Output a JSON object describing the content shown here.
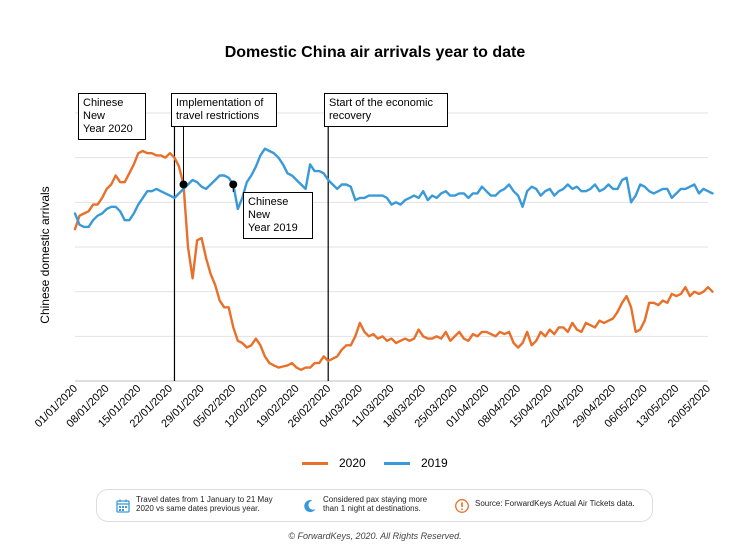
{
  "chart_data": {
    "type": "line",
    "title": "Domestic China air arrivals year to date",
    "ylabel": "Chinese domestic arrivals",
    "xlabel": "",
    "x_ticks": [
      "01/01/2020",
      "08/01/2020",
      "15/01/2020",
      "22/01/2020",
      "29/01/2020",
      "05/02/2020",
      "12/02/2020",
      "19/02/2020",
      "26/02/2020",
      "04/03/2020",
      "11/03/2020",
      "18/03/2020",
      "25/03/2020",
      "01/04/2020",
      "08/04/2020",
      "15/04/2020",
      "22/04/2020",
      "29/04/2020",
      "06/05/2020",
      "13/05/2020",
      "20/05/2020"
    ],
    "grid": true,
    "legend_position": "bottom-center",
    "x_start": "01/01/2020",
    "x_end": "20/05/2020",
    "series": [
      {
        "name": "2020",
        "color": "#E8702A",
        "values": [
          [
            0,
            6.8
          ],
          [
            1,
            7.4
          ],
          [
            2,
            7.5
          ],
          [
            3,
            7.6
          ],
          [
            4,
            7.9
          ],
          [
            5,
            7.9
          ],
          [
            6,
            8.2
          ],
          [
            7,
            8.6
          ],
          [
            8,
            8.8
          ],
          [
            9,
            9.2
          ],
          [
            10,
            8.9
          ],
          [
            11,
            8.9
          ],
          [
            12,
            9.3
          ],
          [
            13,
            9.7
          ],
          [
            14,
            10.2
          ],
          [
            15,
            10.3
          ],
          [
            16,
            10.2
          ],
          [
            17,
            10.2
          ],
          [
            18,
            10.1
          ],
          [
            19,
            10.1
          ],
          [
            20,
            10.0
          ],
          [
            21,
            10.2
          ],
          [
            22,
            10.0
          ],
          [
            23,
            9.6
          ],
          [
            24,
            8.8
          ],
          [
            25,
            6.0
          ],
          [
            26,
            4.6
          ],
          [
            27,
            6.3
          ],
          [
            28,
            6.4
          ],
          [
            29,
            5.5
          ],
          [
            30,
            4.8
          ],
          [
            31,
            4.3
          ],
          [
            32,
            3.6
          ],
          [
            33,
            3.3
          ],
          [
            34,
            3.3
          ],
          [
            35,
            2.4
          ],
          [
            36,
            1.8
          ],
          [
            37,
            1.7
          ],
          [
            38,
            1.5
          ],
          [
            39,
            1.6
          ],
          [
            40,
            1.9
          ],
          [
            41,
            1.6
          ],
          [
            42,
            1.1
          ],
          [
            43,
            0.8
          ],
          [
            44,
            0.7
          ],
          [
            45,
            0.6
          ],
          [
            46,
            0.65
          ],
          [
            47,
            0.7
          ],
          [
            48,
            0.8
          ],
          [
            49,
            0.6
          ],
          [
            50,
            0.5
          ],
          [
            51,
            0.6
          ],
          [
            52,
            0.6
          ],
          [
            53,
            0.8
          ],
          [
            54,
            0.8
          ],
          [
            55,
            1.1
          ],
          [
            56,
            0.9
          ],
          [
            57,
            1.0
          ],
          [
            58,
            1.1
          ],
          [
            59,
            1.4
          ],
          [
            60,
            1.6
          ],
          [
            61,
            1.6
          ],
          [
            62,
            2.0
          ],
          [
            63,
            2.6
          ],
          [
            64,
            2.2
          ],
          [
            65,
            2.0
          ],
          [
            66,
            2.1
          ],
          [
            67,
            1.9
          ],
          [
            68,
            2.0
          ],
          [
            69,
            1.8
          ],
          [
            70,
            1.9
          ],
          [
            71,
            1.7
          ],
          [
            72,
            1.8
          ],
          [
            73,
            1.9
          ],
          [
            74,
            1.8
          ],
          [
            75,
            1.9
          ],
          [
            76,
            2.3
          ],
          [
            77,
            2.0
          ],
          [
            78,
            1.9
          ],
          [
            79,
            1.9
          ],
          [
            80,
            2.0
          ],
          [
            81,
            1.9
          ],
          [
            82,
            2.2
          ],
          [
            83,
            1.8
          ],
          [
            84,
            2.0
          ],
          [
            85,
            2.2
          ],
          [
            86,
            1.9
          ],
          [
            87,
            1.8
          ],
          [
            88,
            2.1
          ],
          [
            89,
            2.0
          ],
          [
            90,
            2.2
          ],
          [
            91,
            2.2
          ],
          [
            92,
            2.1
          ],
          [
            93,
            2.0
          ],
          [
            94,
            2.2
          ],
          [
            95,
            2.1
          ],
          [
            96,
            2.2
          ],
          [
            97,
            1.7
          ],
          [
            98,
            1.5
          ],
          [
            99,
            1.7
          ],
          [
            100,
            2.2
          ],
          [
            101,
            1.6
          ],
          [
            102,
            1.8
          ],
          [
            103,
            2.2
          ],
          [
            104,
            2.0
          ],
          [
            105,
            2.3
          ],
          [
            106,
            2.1
          ],
          [
            107,
            2.4
          ],
          [
            108,
            2.4
          ],
          [
            109,
            2.2
          ],
          [
            110,
            2.6
          ],
          [
            111,
            2.3
          ],
          [
            112,
            2.2
          ],
          [
            113,
            2.6
          ],
          [
            114,
            2.5
          ],
          [
            115,
            2.4
          ],
          [
            116,
            2.7
          ],
          [
            117,
            2.6
          ],
          [
            118,
            2.7
          ],
          [
            119,
            2.8
          ],
          [
            120,
            3.1
          ],
          [
            121,
            3.5
          ],
          [
            122,
            3.8
          ],
          [
            123,
            3.3
          ],
          [
            124,
            2.2
          ],
          [
            125,
            2.3
          ],
          [
            126,
            2.7
          ],
          [
            127,
            3.5
          ],
          [
            128,
            3.5
          ],
          [
            129,
            3.4
          ],
          [
            130,
            3.6
          ],
          [
            131,
            3.5
          ],
          [
            132,
            3.9
          ],
          [
            133,
            3.8
          ],
          [
            134,
            3.9
          ],
          [
            135,
            4.2
          ],
          [
            136,
            3.8
          ],
          [
            137,
            4.0
          ],
          [
            138,
            3.9
          ],
          [
            139,
            4.0
          ],
          [
            140,
            4.2
          ],
          [
            141,
            4.0
          ]
        ]
      },
      {
        "name": "2019",
        "color": "#3A9AD9",
        "values": [
          [
            0,
            7.5
          ],
          [
            1,
            7.0
          ],
          [
            2,
            6.9
          ],
          [
            3,
            6.9
          ],
          [
            4,
            7.2
          ],
          [
            5,
            7.4
          ],
          [
            6,
            7.5
          ],
          [
            7,
            7.7
          ],
          [
            8,
            7.8
          ],
          [
            9,
            7.8
          ],
          [
            10,
            7.6
          ],
          [
            11,
            7.2
          ],
          [
            12,
            7.2
          ],
          [
            13,
            7.5
          ],
          [
            14,
            7.9
          ],
          [
            15,
            8.2
          ],
          [
            16,
            8.5
          ],
          [
            17,
            8.5
          ],
          [
            18,
            8.6
          ],
          [
            19,
            8.5
          ],
          [
            20,
            8.4
          ],
          [
            21,
            8.3
          ],
          [
            22,
            8.2
          ],
          [
            23,
            8.4
          ],
          [
            24,
            8.6
          ],
          [
            25,
            8.8
          ],
          [
            26,
            9.0
          ],
          [
            27,
            8.9
          ],
          [
            28,
            8.7
          ],
          [
            29,
            8.6
          ],
          [
            30,
            8.8
          ],
          [
            31,
            9.0
          ],
          [
            32,
            9.2
          ],
          [
            33,
            9.2
          ],
          [
            34,
            9.1
          ],
          [
            35,
            8.8
          ],
          [
            36,
            7.7
          ],
          [
            37,
            8.2
          ],
          [
            38,
            8.9
          ],
          [
            39,
            9.2
          ],
          [
            40,
            9.6
          ],
          [
            41,
            10.1
          ],
          [
            42,
            10.4
          ],
          [
            43,
            10.3
          ],
          [
            44,
            10.2
          ],
          [
            45,
            10.0
          ],
          [
            46,
            9.7
          ],
          [
            47,
            9.3
          ],
          [
            48,
            9.2
          ],
          [
            49,
            9.0
          ],
          [
            50,
            8.8
          ],
          [
            51,
            8.6
          ],
          [
            52,
            9.7
          ],
          [
            53,
            9.4
          ],
          [
            54,
            9.4
          ],
          [
            55,
            9.3
          ],
          [
            56,
            9.0
          ],
          [
            57,
            8.8
          ],
          [
            58,
            8.6
          ],
          [
            59,
            8.8
          ],
          [
            60,
            8.8
          ],
          [
            61,
            8.7
          ],
          [
            62,
            8.1
          ],
          [
            63,
            8.2
          ],
          [
            64,
            8.2
          ],
          [
            65,
            8.3
          ],
          [
            66,
            8.3
          ],
          [
            67,
            8.3
          ],
          [
            68,
            8.3
          ],
          [
            69,
            8.2
          ],
          [
            70,
            7.9
          ],
          [
            71,
            8.0
          ],
          [
            72,
            7.9
          ],
          [
            73,
            8.1
          ],
          [
            74,
            8.2
          ],
          [
            75,
            8.3
          ],
          [
            76,
            8.2
          ],
          [
            77,
            8.5
          ],
          [
            78,
            8.1
          ],
          [
            79,
            8.3
          ],
          [
            80,
            8.2
          ],
          [
            81,
            8.4
          ],
          [
            82,
            8.5
          ],
          [
            83,
            8.3
          ],
          [
            84,
            8.3
          ],
          [
            85,
            8.4
          ],
          [
            86,
            8.4
          ],
          [
            87,
            8.2
          ],
          [
            88,
            8.4
          ],
          [
            89,
            8.4
          ],
          [
            90,
            8.7
          ],
          [
            91,
            8.5
          ],
          [
            92,
            8.3
          ],
          [
            93,
            8.3
          ],
          [
            94,
            8.5
          ],
          [
            95,
            8.6
          ],
          [
            96,
            8.8
          ],
          [
            97,
            8.5
          ],
          [
            98,
            8.3
          ],
          [
            99,
            7.8
          ],
          [
            100,
            8.5
          ],
          [
            101,
            8.7
          ],
          [
            102,
            8.6
          ],
          [
            103,
            8.3
          ],
          [
            104,
            8.5
          ],
          [
            105,
            8.6
          ],
          [
            106,
            8.3
          ],
          [
            107,
            8.5
          ],
          [
            108,
            8.6
          ],
          [
            109,
            8.8
          ],
          [
            110,
            8.6
          ],
          [
            111,
            8.7
          ],
          [
            112,
            8.5
          ],
          [
            113,
            8.5
          ],
          [
            114,
            8.6
          ],
          [
            115,
            8.8
          ],
          [
            116,
            8.5
          ],
          [
            117,
            8.6
          ],
          [
            118,
            8.8
          ],
          [
            119,
            8.6
          ],
          [
            120,
            8.6
          ],
          [
            121,
            9.0
          ],
          [
            122,
            9.1
          ],
          [
            123,
            8.0
          ],
          [
            124,
            8.3
          ],
          [
            125,
            8.8
          ],
          [
            126,
            8.7
          ],
          [
            127,
            8.5
          ],
          [
            128,
            8.4
          ],
          [
            129,
            8.5
          ],
          [
            130,
            8.6
          ],
          [
            131,
            8.6
          ],
          [
            132,
            8.2
          ],
          [
            133,
            8.4
          ],
          [
            134,
            8.6
          ],
          [
            135,
            8.6
          ],
          [
            136,
            8.7
          ],
          [
            137,
            8.8
          ],
          [
            138,
            8.4
          ],
          [
            139,
            8.6
          ],
          [
            140,
            8.5
          ],
          [
            141,
            8.4
          ]
        ]
      }
    ],
    "annotations": [
      {
        "text": "Chinese New\nYear 2020",
        "date": "25/01/2020"
      },
      {
        "text": "Chinese New\nYear 2019",
        "date": "05/02/2019"
      }
    ],
    "event_lines": [
      {
        "label": "Implementation of\ntravel restrictions",
        "date": "23/01/2020"
      },
      {
        "label": "Start of the economic\nrecovery",
        "date": "26/02/2020"
      }
    ]
  },
  "info": {
    "travel_dates": "Travel dates from 1 January to 21 May\n2020 vs same dates previous year.",
    "considered": "Considered pax staying more\nthan 1 night at destinations.",
    "source": "Source: ForwardKeys Actual Air Tickets data."
  },
  "footer": "© ForwardKeys, 2020. All Rights Reserved.",
  "icons": {
    "calendar": "calendar-icon",
    "moon": "moon-icon",
    "alert": "alert-icon"
  }
}
